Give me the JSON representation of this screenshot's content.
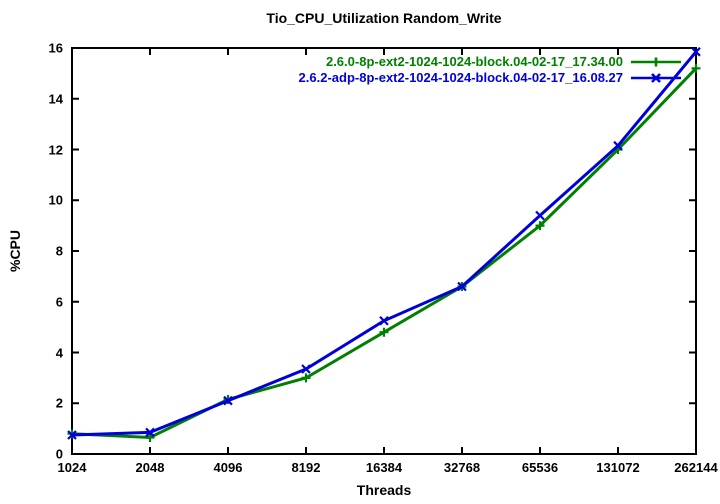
{
  "window": {
    "background_color": "#ffffff",
    "foreground_color": "#000000"
  },
  "chart_data": {
    "type": "line",
    "title": "Tio_CPU_Utilization Random_Write",
    "xlabel": "Threads",
    "ylabel": "%CPU",
    "categories": [
      "1024",
      "2048",
      "4096",
      "8192",
      "16384",
      "32768",
      "65536",
      "131072",
      "262144"
    ],
    "x_scale": "log2-evenly-spaced",
    "yticks": [
      "0",
      "2",
      "4",
      "6",
      "8",
      "10",
      "12",
      "14",
      "16"
    ],
    "ylim": [
      0,
      16
    ],
    "grid": false,
    "border": "box-with-mirrored-inward-ticks",
    "legend_position": "top-right-inside",
    "series": [
      {
        "name": "2.6.0-8p-ext2-1024-1024-block.04-02-17_17.34.00",
        "color": "#008000",
        "marker": "plus",
        "values": [
          0.8,
          0.65,
          2.15,
          3.0,
          4.8,
          6.6,
          9.0,
          12.0,
          15.2
        ]
      },
      {
        "name": "2.6.2-adp-8p-ext2-1024-1024-block.04-02-17_16.08.27",
        "color": "#0000dd",
        "marker": "cross",
        "values": [
          0.75,
          0.85,
          2.1,
          3.35,
          5.25,
          6.6,
          9.4,
          12.15,
          15.85
        ]
      }
    ]
  }
}
